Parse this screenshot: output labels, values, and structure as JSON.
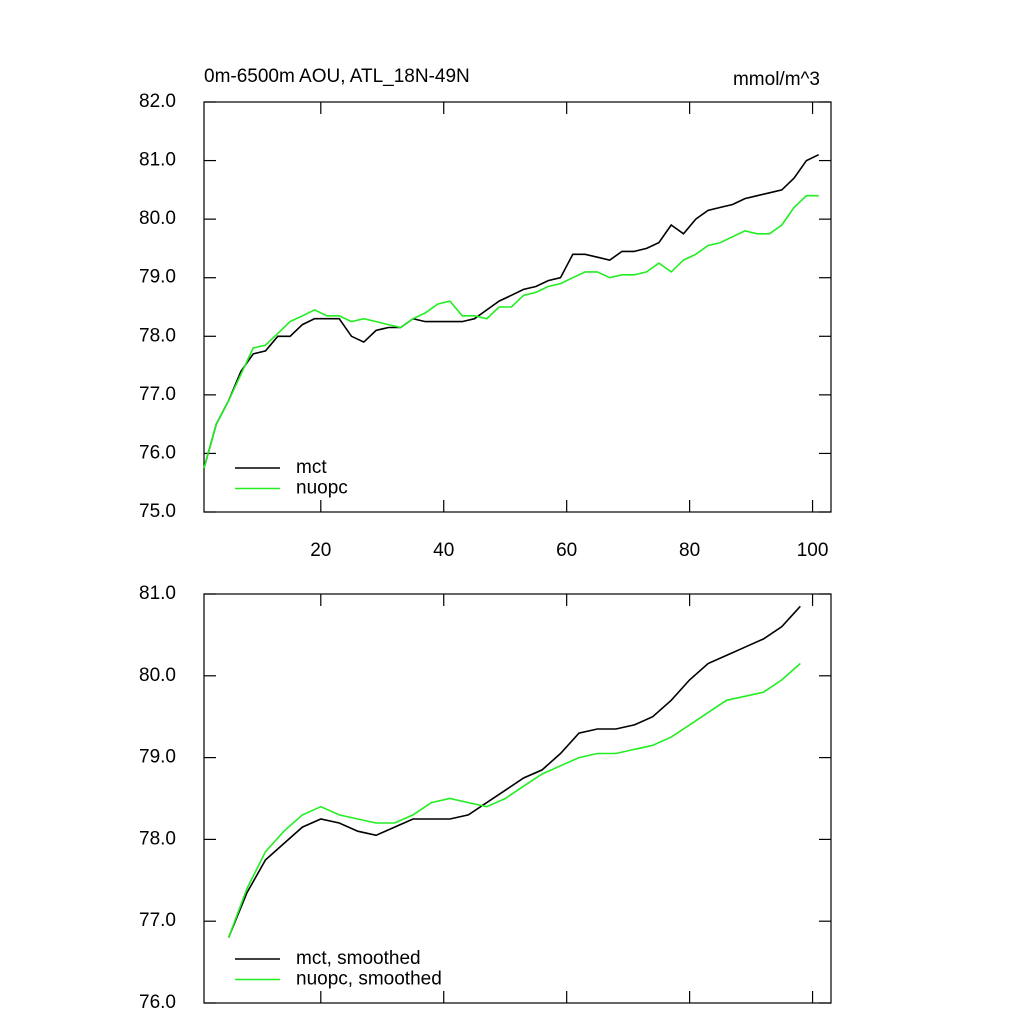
{
  "chart_data": [
    {
      "type": "line",
      "title": "0m-6500m AOU, ATL_18N-49N",
      "units": "mmol/m^3",
      "x": [
        1,
        3,
        5,
        7,
        9,
        11,
        13,
        15,
        17,
        19,
        21,
        23,
        25,
        27,
        29,
        31,
        33,
        35,
        37,
        39,
        41,
        43,
        45,
        47,
        49,
        51,
        53,
        55,
        57,
        59,
        61,
        63,
        65,
        67,
        69,
        71,
        73,
        75,
        77,
        79,
        81,
        83,
        85,
        87,
        89,
        91,
        93,
        95,
        97,
        99,
        101
      ],
      "series": [
        {
          "name": "mct",
          "color": "#000000",
          "values": [
            75.75,
            76.5,
            76.9,
            77.4,
            77.7,
            77.75,
            78.0,
            78.0,
            78.2,
            78.3,
            78.3,
            78.3,
            78.0,
            77.9,
            78.1,
            78.15,
            78.15,
            78.3,
            78.25,
            78.25,
            78.25,
            78.25,
            78.3,
            78.45,
            78.6,
            78.7,
            78.8,
            78.85,
            78.95,
            79.0,
            79.4,
            79.4,
            79.35,
            79.3,
            79.45,
            79.45,
            79.5,
            79.6,
            79.9,
            79.75,
            80.0,
            80.15,
            80.2,
            80.25,
            80.35,
            80.4,
            80.45,
            80.5,
            80.7,
            81.0,
            81.1
          ]
        },
        {
          "name": "nuopc",
          "color": "#22ee22",
          "values": [
            75.75,
            76.5,
            76.9,
            77.35,
            77.8,
            77.85,
            78.05,
            78.25,
            78.35,
            78.45,
            78.35,
            78.35,
            78.25,
            78.3,
            78.25,
            78.2,
            78.15,
            78.3,
            78.4,
            78.55,
            78.6,
            78.35,
            78.35,
            78.3,
            78.5,
            78.5,
            78.7,
            78.75,
            78.85,
            78.9,
            79.0,
            79.1,
            79.1,
            79.0,
            79.05,
            79.05,
            79.1,
            79.25,
            79.1,
            79.3,
            79.4,
            79.55,
            79.6,
            79.7,
            79.8,
            79.75,
            79.75,
            79.9,
            80.2,
            80.4,
            80.4
          ]
        }
      ],
      "xlim": [
        1,
        103
      ],
      "xticks": [
        20,
        40,
        60,
        80,
        100
      ],
      "ylim": [
        75,
        82
      ],
      "yticks": [
        {
          "value": 75,
          "label": "75.0"
        },
        {
          "value": 76,
          "label": "76.0"
        },
        {
          "value": 77,
          "label": "77.0"
        },
        {
          "value": 78,
          "label": "78.0"
        },
        {
          "value": 79,
          "label": "79.0"
        },
        {
          "value": 80,
          "label": "80.0"
        },
        {
          "value": 81,
          "label": "81.0"
        },
        {
          "value": 82,
          "label": "82.0"
        }
      ],
      "legend": "lower left"
    },
    {
      "type": "line",
      "x": [
        5,
        8,
        11,
        14,
        17,
        20,
        23,
        26,
        29,
        32,
        35,
        38,
        41,
        44,
        47,
        50,
        53,
        56,
        59,
        62,
        65,
        68,
        71,
        74,
        77,
        80,
        83,
        86,
        89,
        92,
        95,
        98
      ],
      "series": [
        {
          "name": "mct, smoothed",
          "color": "#000000",
          "values": [
            76.8,
            77.35,
            77.75,
            77.95,
            78.15,
            78.25,
            78.2,
            78.1,
            78.05,
            78.15,
            78.25,
            78.25,
            78.25,
            78.3,
            78.45,
            78.6,
            78.75,
            78.85,
            79.05,
            79.3,
            79.35,
            79.35,
            79.4,
            79.5,
            79.7,
            79.95,
            80.15,
            80.25,
            80.35,
            80.45,
            80.6,
            80.85
          ]
        },
        {
          "name": "nuopc, smoothed",
          "color": "#22ee22",
          "values": [
            76.8,
            77.4,
            77.85,
            78.1,
            78.3,
            78.4,
            78.3,
            78.25,
            78.2,
            78.2,
            78.3,
            78.45,
            78.5,
            78.45,
            78.4,
            78.5,
            78.65,
            78.8,
            78.9,
            79.0,
            79.05,
            79.05,
            79.1,
            79.15,
            79.25,
            79.4,
            79.55,
            79.7,
            79.75,
            79.8,
            79.95,
            80.15
          ]
        }
      ],
      "xlim": [
        1,
        103
      ],
      "ylim": [
        76,
        81
      ],
      "yticks": [
        {
          "value": 76,
          "label": "76.0"
        },
        {
          "value": 77,
          "label": "77.0"
        },
        {
          "value": 78,
          "label": "78.0"
        },
        {
          "value": 79,
          "label": "79.0"
        },
        {
          "value": 80,
          "label": "80.0"
        },
        {
          "value": 81,
          "label": "81.0"
        }
      ],
      "legend": "lower left"
    }
  ]
}
